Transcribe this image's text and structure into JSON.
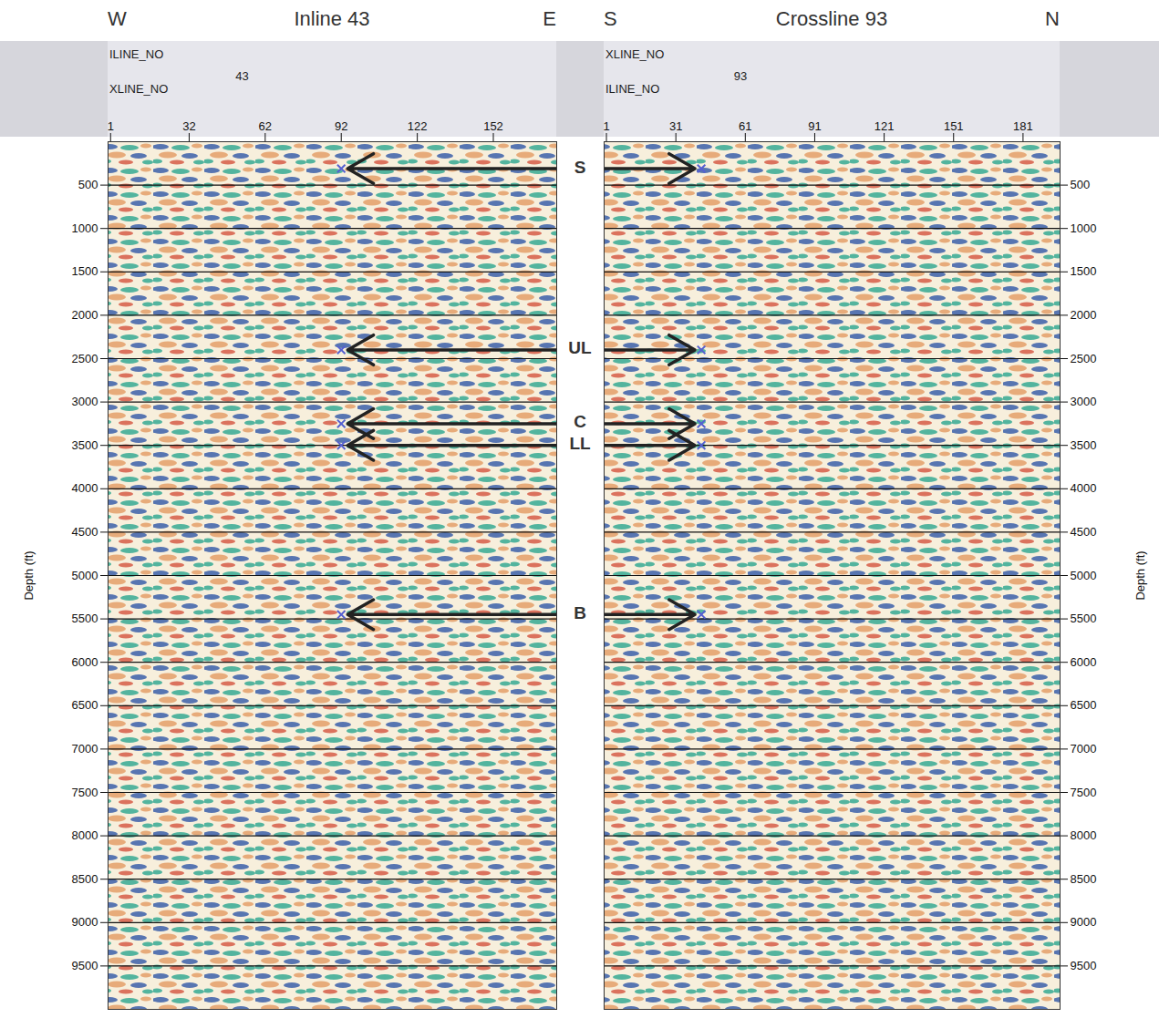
{
  "chart_data": {
    "type": "seismic_sections",
    "marker": "x",
    "grid": true,
    "horizons": [
      {
        "name": "S",
        "depth": 310
      },
      {
        "name": "UL",
        "depth": 2400
      },
      {
        "name": "C",
        "depth": 3250
      },
      {
        "name": "LL",
        "depth": 3500
      },
      {
        "name": "B",
        "depth": 5450
      }
    ],
    "panels": [
      {
        "title": "Inline 43",
        "direction_labels": [
          "W",
          "E"
        ],
        "header_fixed": {
          "name": "ILINE_NO",
          "value": 43
        },
        "x_axis_name": "XLINE_NO",
        "xlim": [
          0,
          177
        ],
        "xticks": [
          1,
          32,
          62,
          92,
          122,
          152
        ],
        "ylabel": "Depth (ft)",
        "ylim": [
          0,
          10000
        ],
        "yticks": [
          500,
          1000,
          1500,
          2000,
          2500,
          3000,
          3500,
          4000,
          4500,
          5000,
          5500,
          6000,
          6500,
          7000,
          7500,
          8000,
          8500,
          9000,
          9500
        ],
        "horizon_traces": [
          92,
          92,
          92,
          92,
          92
        ]
      },
      {
        "title": "Crossline 93",
        "direction_labels": [
          "S",
          "N"
        ],
        "header_fixed": {
          "name": "XLINE_NO",
          "value": 93
        },
        "x_axis_name": "ILINE_NO",
        "xlim": [
          0,
          197
        ],
        "xticks": [
          1,
          31,
          61,
          91,
          121,
          151,
          181
        ],
        "ylabel": "Depth (ft)",
        "ylim": [
          0,
          10000
        ],
        "yticks": [
          500,
          1000,
          1500,
          2000,
          2500,
          3000,
          3500,
          4000,
          4500,
          5000,
          5500,
          6000,
          6500,
          7000,
          7500,
          8000,
          8500,
          9000,
          9500
        ],
        "horizon_traces": [
          42,
          42,
          42,
          42,
          42
        ]
      }
    ]
  }
}
